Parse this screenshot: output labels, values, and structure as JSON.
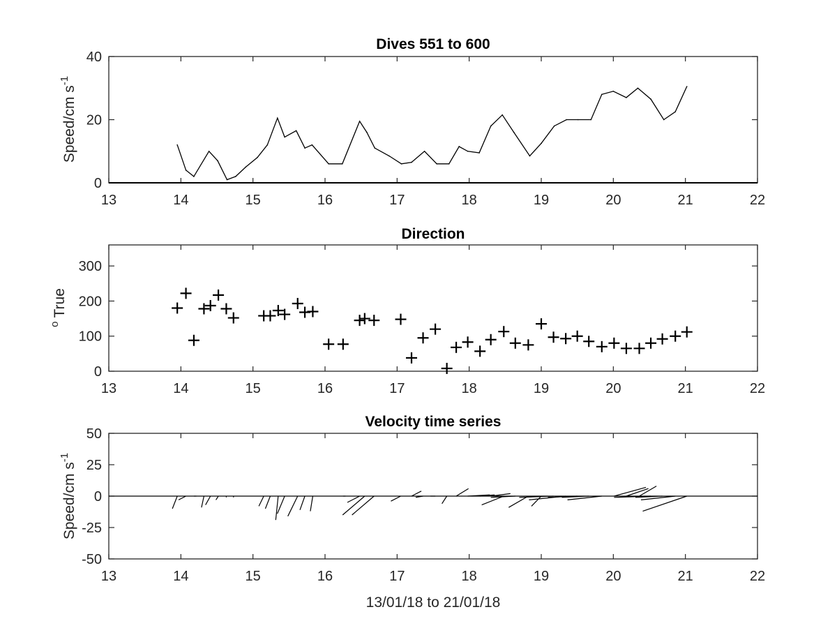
{
  "chart_data": [
    {
      "type": "line",
      "title": "Dives 551 to 600",
      "xlabel": "",
      "ylabel": "Speed/cm s",
      "ylabel_superscript": "-1",
      "xlim": [
        13,
        22
      ],
      "ylim": [
        0,
        40
      ],
      "xticks": [
        "13",
        "14",
        "15",
        "16",
        "17",
        "18",
        "19",
        "20",
        "21",
        "22"
      ],
      "yticks": [
        "0",
        "20",
        "40"
      ],
      "grid": false,
      "series": [
        {
          "color": "#000000",
          "x": [
            13.95,
            14.07,
            14.18,
            14.39,
            14.51,
            14.64,
            14.76,
            14.9,
            15.06,
            15.2,
            15.34,
            15.44,
            15.6,
            15.72,
            15.82,
            16.05,
            16.24,
            16.48,
            16.58,
            16.69,
            16.89,
            17.06,
            17.2,
            17.38,
            17.55,
            17.72,
            17.86,
            17.98,
            18.14,
            18.3,
            18.46,
            18.62,
            18.84,
            19.0,
            19.18,
            19.35,
            19.51,
            19.69,
            19.84,
            20.0,
            20.18,
            20.34,
            20.52,
            20.7,
            20.86,
            21.02
          ],
          "values": [
            12,
            4,
            2,
            10,
            7,
            1,
            2,
            5,
            8,
            12,
            20.5,
            14.5,
            16.5,
            11,
            12,
            6,
            6,
            19.5,
            16,
            11,
            8.5,
            6,
            6.5,
            10,
            6,
            6,
            11.5,
            10,
            9.5,
            18,
            21.5,
            16,
            8.5,
            12.5,
            18,
            20,
            20,
            20,
            28,
            29,
            27,
            30,
            26.5,
            20,
            22.5,
            30.5
          ]
        }
      ]
    },
    {
      "type": "scatter",
      "title": "Direction",
      "xlabel": "",
      "ylabel": "True",
      "ylabel_superscript": "o",
      "marker": "+",
      "xlim": [
        13,
        22
      ],
      "ylim": [
        0,
        360
      ],
      "xticks": [
        "13",
        "14",
        "15",
        "16",
        "17",
        "18",
        "19",
        "20",
        "21",
        "22"
      ],
      "yticks": [
        "0",
        "100",
        "200",
        "300"
      ],
      "grid": false,
      "series": [
        {
          "color": "#000000",
          "x": [
            13.95,
            14.07,
            14.18,
            14.32,
            14.41,
            14.52,
            14.63,
            14.73,
            15.15,
            15.24,
            15.35,
            15.44,
            15.62,
            15.72,
            15.83,
            16.05,
            16.25,
            16.48,
            16.55,
            16.68,
            17.05,
            17.2,
            17.36,
            17.53,
            17.69,
            17.82,
            17.98,
            18.15,
            18.3,
            18.48,
            18.64,
            18.82,
            19.0,
            19.17,
            19.34,
            19.5,
            19.66,
            19.84,
            20.01,
            20.18,
            20.36,
            20.52,
            20.68,
            20.86,
            21.02
          ],
          "values": [
            180,
            222,
            88,
            178,
            187,
            217,
            178,
            152,
            158,
            158,
            173,
            162,
            193,
            168,
            170,
            77,
            77,
            145,
            150,
            145,
            148,
            38,
            95,
            120,
            8,
            68,
            83,
            57,
            90,
            113,
            80,
            75,
            135,
            97,
            93,
            100,
            85,
            70,
            80,
            65,
            65,
            80,
            92,
            100,
            112
          ]
        }
      ]
    },
    {
      "type": "line",
      "subtype": "stick-plot (velocity vectors)",
      "title": "Velocity time series",
      "xlabel": "13/01/18 to 21/01/18",
      "ylabel": "Speed/cm s",
      "ylabel_superscript": "-1",
      "xlim": [
        13,
        22
      ],
      "ylim": [
        -50,
        50
      ],
      "xticks": [
        "13",
        "14",
        "15",
        "16",
        "17",
        "18",
        "19",
        "20",
        "21",
        "22"
      ],
      "yticks": [
        "-50",
        "-25",
        "0",
        "25",
        "50"
      ],
      "grid": false,
      "series": [
        {
          "color": "#000000",
          "x": [
            13.95,
            14.07,
            14.18,
            14.32,
            14.41,
            14.52,
            14.63,
            14.73,
            15.15,
            15.24,
            15.35,
            15.44,
            15.62,
            15.72,
            15.83,
            16.05,
            16.25,
            16.48,
            16.55,
            16.68,
            17.05,
            17.2,
            17.36,
            17.53,
            17.69,
            17.82,
            17.98,
            18.15,
            18.3,
            18.48,
            18.64,
            18.82,
            19.0,
            19.17,
            19.34,
            19.5,
            19.66,
            19.84,
            20.01,
            20.18,
            20.36,
            20.52,
            20.68,
            20.86,
            21.02
          ],
          "u": [
            -2,
            -3,
            1,
            -1,
            -2,
            -1,
            0,
            0,
            -2,
            -2,
            -1,
            -3,
            -4,
            -2,
            -1,
            0,
            1,
            -5,
            -9,
            -9,
            -4,
            4,
            -3,
            -2,
            -2,
            5,
            9,
            6,
            8,
            -9,
            -10,
            -8,
            -4,
            -14,
            -15,
            -12,
            -11,
            -14,
            13,
            9,
            7,
            -15,
            -11,
            -14,
            -18
          ],
          "v": [
            -10,
            -3,
            0,
            -9,
            -7,
            -3,
            -1,
            -1,
            -8,
            -10,
            -19,
            -14,
            -16,
            -11,
            -12,
            0,
            0,
            -5,
            -15,
            -15,
            -4,
            4,
            -1,
            0,
            -6,
            6,
            1,
            1,
            2,
            -7,
            -1,
            -9,
            -8,
            -1,
            -3,
            -1,
            -1,
            -3,
            7,
            6,
            8,
            -1,
            -1,
            -3,
            -12
          ]
        }
      ]
    }
  ]
}
